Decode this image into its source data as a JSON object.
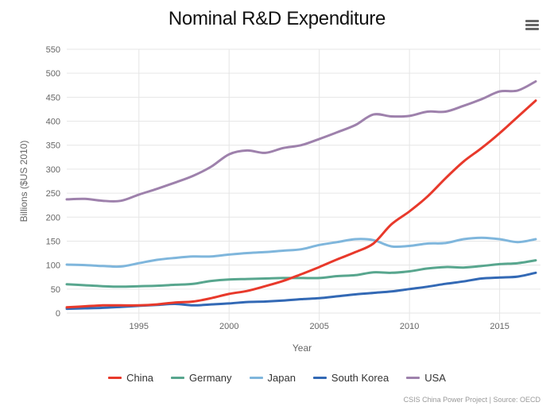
{
  "header": {
    "title": "Nominal R&D Expenditure",
    "menu_icon": "hamburger-menu-icon"
  },
  "credits": "CSIS China Power Project | Source: OECD",
  "chart_data": {
    "type": "line",
    "title": "Nominal R&D Expenditure",
    "xlabel": "Year",
    "ylabel": "Billions ($US 2010)",
    "xlim": [
      1991,
      2017
    ],
    "ylim": [
      0,
      550
    ],
    "yticks": [
      0,
      50,
      100,
      150,
      200,
      250,
      300,
      350,
      400,
      450,
      500,
      550
    ],
    "xticks": [
      1995,
      2000,
      2005,
      2010,
      2015
    ],
    "grid": true,
    "legend_position": "bottom",
    "x": [
      1991,
      1992,
      1993,
      1994,
      1995,
      1996,
      1997,
      1998,
      1999,
      2000,
      2001,
      2002,
      2003,
      2004,
      2005,
      2006,
      2007,
      2008,
      2009,
      2010,
      2011,
      2012,
      2013,
      2014,
      2015,
      2016,
      2017
    ],
    "series": [
      {
        "name": "China",
        "color": "#e8392b",
        "values": [
          12,
          14,
          16,
          16,
          16,
          18,
          22,
          24,
          31,
          40,
          46,
          56,
          67,
          81,
          96,
          112,
          127,
          145,
          185,
          212,
          243,
          281,
          316,
          344,
          375,
          409,
          443
        ]
      },
      {
        "name": "Germany",
        "color": "#58a68e",
        "values": [
          60,
          58,
          56,
          55,
          56,
          57,
          59,
          61,
          67,
          70,
          71,
          72,
          73,
          73,
          73,
          77,
          79,
          85,
          84,
          87,
          93,
          96,
          95,
          98,
          102,
          104,
          110
        ]
      },
      {
        "name": "Japan",
        "color": "#7fb6dc",
        "values": [
          101,
          100,
          98,
          97,
          104,
          111,
          115,
          118,
          118,
          122,
          125,
          127,
          130,
          133,
          142,
          148,
          154,
          152,
          139,
          140,
          145,
          146,
          154,
          157,
          154,
          148,
          154
        ]
      },
      {
        "name": "South Korea",
        "color": "#3369b5",
        "values": [
          9,
          10,
          11,
          13,
          15,
          17,
          19,
          16,
          18,
          20,
          23,
          24,
          26,
          29,
          31,
          35,
          39,
          42,
          45,
          50,
          55,
          61,
          66,
          72,
          74,
          76,
          84
        ]
      },
      {
        "name": "USA",
        "color": "#9e81ac",
        "values": [
          237,
          238,
          234,
          234,
          247,
          259,
          272,
          286,
          305,
          331,
          339,
          334,
          344,
          350,
          363,
          377,
          392,
          414,
          410,
          411,
          420,
          420,
          432,
          446,
          462,
          464,
          483
        ]
      }
    ]
  }
}
